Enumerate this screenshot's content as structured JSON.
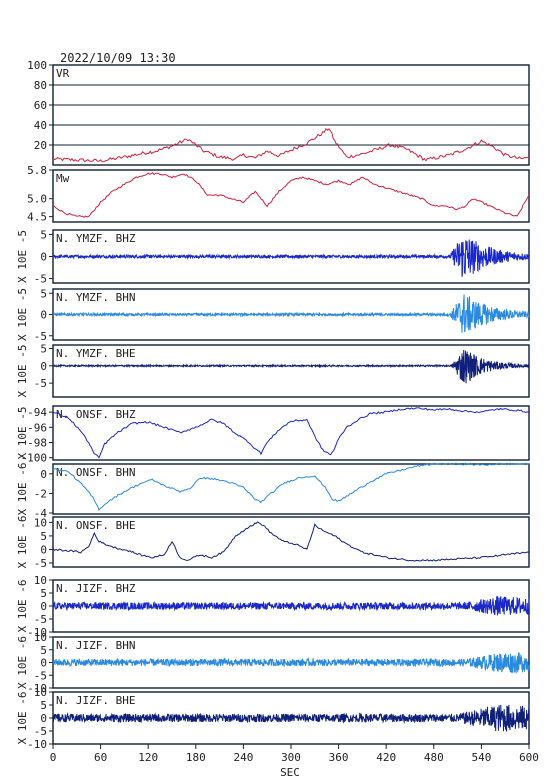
{
  "header": {
    "timestamp": "2022/10/09  13:30"
  },
  "colors": {
    "frame": "#0d2036",
    "vr": "#d0203e",
    "mw": "#d0203e",
    "bhz": "#1a28c8",
    "bhn": "#2a8ae0",
    "bhe": "#10207a"
  },
  "chart_data": {
    "type": "line",
    "xlabel": "SEC",
    "xlim": [
      0,
      600
    ],
    "xticks": [
      0,
      60,
      120,
      180,
      240,
      300,
      360,
      420,
      480,
      540,
      600
    ],
    "panels": [
      {
        "id": "vr",
        "name": "VR",
        "ylabel": "",
        "color": "vr",
        "style": "line",
        "grid": true,
        "ylim": [
          0,
          100
        ],
        "yticks": [
          20,
          40,
          60,
          80,
          100
        ],
        "yticklabels": [
          "20",
          "40",
          "60",
          "80",
          "100"
        ],
        "x": [
          0,
          30,
          60,
          90,
          115,
          130,
          150,
          170,
          190,
          210,
          230,
          240,
          255,
          270,
          285,
          300,
          320,
          340,
          348,
          355,
          370,
          390,
          410,
          425,
          445,
          470,
          500,
          520,
          540,
          555,
          570,
          590,
          600
        ],
        "y": [
          6,
          5,
          4,
          8,
          12,
          14,
          19,
          26,
          14,
          8,
          6,
          10,
          7,
          14,
          9,
          15,
          22,
          32,
          37,
          24,
          8,
          11,
          16,
          20,
          16,
          5,
          10,
          16,
          24,
          18,
          10,
          6,
          8
        ]
      },
      {
        "id": "mw",
        "name": "Mw",
        "ylabel": "",
        "color": "mw",
        "style": "line",
        "grid": false,
        "ylim": [
          4.35,
          5.8
        ],
        "yticks": [
          4.5,
          5.0,
          5.8
        ],
        "yticklabels": [
          "4.5",
          "5.0",
          "5.8"
        ],
        "x": [
          0,
          15,
          30,
          45,
          60,
          75,
          90,
          105,
          120,
          135,
          150,
          165,
          180,
          195,
          210,
          225,
          240,
          255,
          270,
          285,
          300,
          315,
          330,
          345,
          360,
          375,
          390,
          405,
          420,
          435,
          450,
          465,
          480,
          495,
          510,
          520,
          530,
          540,
          550,
          560,
          570,
          585,
          600
        ],
        "y": [
          4.8,
          4.6,
          4.5,
          4.5,
          4.9,
          5.2,
          5.4,
          5.6,
          5.7,
          5.7,
          5.6,
          5.7,
          5.5,
          5.1,
          5.1,
          5.0,
          4.9,
          5.2,
          4.8,
          5.2,
          5.5,
          5.6,
          5.5,
          5.4,
          5.5,
          5.4,
          5.6,
          5.4,
          5.3,
          5.2,
          5.1,
          5.0,
          4.8,
          4.8,
          4.7,
          4.8,
          5.0,
          4.9,
          4.8,
          4.7,
          4.6,
          4.5,
          5.1
        ]
      },
      {
        "id": "ymzf-bhz",
        "name": "N. YMZF. BHZ",
        "ylabel": "X 10E -5",
        "color": "bhz",
        "style": "wave",
        "ylim": [
          -6,
          6
        ],
        "yticks": [
          5,
          0,
          -5
        ],
        "yticklabels": [
          "5",
          "0",
          "-5"
        ],
        "noise": 0.35,
        "event_start": 500,
        "event_peak": 518,
        "event_amp": 5.5,
        "event_decay": 30
      },
      {
        "id": "ymzf-bhn",
        "name": "N. YMZF. BHN",
        "ylabel": "X 10E -5",
        "color": "bhn",
        "style": "wave",
        "ylim": [
          -6,
          6
        ],
        "yticks": [
          5,
          0,
          -5
        ],
        "yticklabels": [
          "5",
          "0",
          "-5"
        ],
        "noise": 0.3,
        "event_start": 500,
        "event_peak": 518,
        "event_amp": 5.0,
        "event_decay": 32
      },
      {
        "id": "ymzf-bhe",
        "name": "N. YMZF. BHE",
        "ylabel": "X 10E -5",
        "color": "bhe",
        "style": "wave",
        "ylim": [
          -9,
          6
        ],
        "yticks": [
          5,
          0,
          -5
        ],
        "yticklabels": [
          "5",
          "0",
          "-5"
        ],
        "noise": 0.2,
        "event_start": 502,
        "event_peak": 518,
        "event_amp": 5.5,
        "event_decay": 25
      },
      {
        "id": "onsf-bhz",
        "name": "N. ONSF. BHZ",
        "ylabel": "X 10E -5",
        "color": "bhz",
        "style": "line",
        "ylim": [
          -100.3,
          -93.2
        ],
        "yticks": [
          -94,
          -96,
          -98,
          -100
        ],
        "yticklabels": [
          "-94",
          "-96",
          "-98",
          "-100"
        ],
        "x": [
          0,
          20,
          35,
          45,
          52,
          58,
          65,
          80,
          100,
          120,
          140,
          160,
          180,
          200,
          215,
          230,
          245,
          255,
          262,
          270,
          285,
          300,
          320,
          330,
          340,
          350,
          355,
          360,
          370,
          385,
          400,
          420,
          440,
          460,
          480,
          500,
          520,
          540,
          560,
          580,
          600
        ],
        "y": [
          -94.0,
          -94.8,
          -96.5,
          -98.0,
          -99.5,
          -100.0,
          -98.2,
          -96.8,
          -95.5,
          -95.3,
          -96.0,
          -96.7,
          -96.0,
          -95.0,
          -95.5,
          -96.8,
          -97.8,
          -98.8,
          -99.4,
          -98.0,
          -96.3,
          -95.2,
          -95.0,
          -97.2,
          -99.0,
          -99.6,
          -98.8,
          -97.5,
          -96.0,
          -95.0,
          -94.2,
          -94.0,
          -93.6,
          -93.5,
          -93.7,
          -93.6,
          -93.9,
          -94.0,
          -93.6,
          -93.7,
          -94.0
        ]
      },
      {
        "id": "onsf-bhn",
        "name": "N. ONSF. BHN",
        "ylabel": "X 10E -6",
        "color": "bhn",
        "style": "line",
        "ylim": [
          -4.1,
          1.0
        ],
        "yticks": [
          0,
          -2,
          -4
        ],
        "yticklabels": [
          "0",
          "-2",
          "-4"
        ],
        "x": [
          0,
          20,
          40,
          50,
          58,
          70,
          90,
          110,
          125,
          140,
          160,
          175,
          185,
          200,
          220,
          240,
          255,
          262,
          272,
          290,
          310,
          330,
          345,
          352,
          360,
          380,
          400,
          420,
          440,
          460,
          480,
          500,
          520,
          540,
          560,
          580,
          600
        ],
        "y": [
          0.5,
          0.2,
          -1.4,
          -2.4,
          -3.6,
          -2.8,
          -1.8,
          -1.0,
          -0.6,
          -1.2,
          -1.8,
          -1.4,
          -0.4,
          -0.5,
          -0.8,
          -1.4,
          -2.6,
          -2.9,
          -2.2,
          -1.0,
          -0.4,
          -0.2,
          -1.6,
          -2.6,
          -2.8,
          -1.8,
          -0.8,
          0.0,
          0.4,
          0.8,
          1.0,
          1.0,
          1.0,
          0.9,
          1.0,
          1.0,
          1.0
        ]
      },
      {
        "id": "onsf-bhe",
        "name": "N. ONSF. BHE",
        "ylabel": "X 10E -6",
        "color": "bhe",
        "style": "line",
        "ylim": [
          -6.5,
          12
        ],
        "yticks": [
          10,
          5,
          0,
          -5
        ],
        "yticklabels": [
          "10",
          "5",
          "0",
          "-5"
        ],
        "x": [
          0,
          20,
          35,
          45,
          52,
          58,
          65,
          80,
          95,
          110,
          125,
          140,
          150,
          160,
          170,
          185,
          200,
          215,
          230,
          245,
          258,
          265,
          275,
          290,
          305,
          320,
          330,
          340,
          355,
          370,
          390,
          420,
          450,
          480,
          510,
          540,
          570,
          600
        ],
        "y": [
          0,
          -0.5,
          -1.0,
          1.0,
          6.0,
          3.0,
          2.0,
          0.5,
          -0.5,
          -2.0,
          -3.0,
          -2.0,
          3.0,
          -3.0,
          -4.0,
          -2.0,
          -3.0,
          -1.0,
          5.0,
          8.0,
          10.0,
          9.0,
          6.0,
          3.0,
          2.0,
          0.0,
          9.0,
          7.0,
          5.0,
          2.0,
          -1.0,
          -3.0,
          -4.0,
          -4.0,
          -3.5,
          -3.0,
          -2.0,
          -1.0
        ]
      },
      {
        "id": "jizf-bhz",
        "name": "N. JIZF. BHZ",
        "ylabel": "X 10E -6",
        "color": "bhz",
        "style": "wave",
        "ylim": [
          -10,
          10
        ],
        "yticks": [
          10,
          5,
          0,
          -5,
          -10
        ],
        "yticklabels": [
          "10",
          "5",
          "0",
          "-5",
          "-10"
        ],
        "noise": 1.4,
        "event_start": 520,
        "event_peak": 560,
        "event_amp": 2.5,
        "event_decay": 120
      },
      {
        "id": "jizf-bhn",
        "name": "N. JIZF. BHN",
        "ylabel": "X 10E -6",
        "color": "bhn",
        "style": "wave",
        "ylim": [
          -10,
          10
        ],
        "yticks": [
          10,
          5,
          0,
          -5,
          -10
        ],
        "yticklabels": [
          "10",
          "5",
          "0",
          "-5",
          "-10"
        ],
        "noise": 1.4,
        "event_start": 520,
        "event_peak": 570,
        "event_amp": 3.0,
        "event_decay": 120
      },
      {
        "id": "jizf-bhe",
        "name": "N. JIZF. BHE",
        "ylabel": "X 10E -6",
        "color": "bhe",
        "style": "wave",
        "ylim": [
          -10,
          10
        ],
        "yticks": [
          10,
          5,
          0,
          -5,
          -10
        ],
        "yticklabels": [
          "10",
          "5",
          "0",
          "-5",
          "-10"
        ],
        "noise": 1.6,
        "event_start": 510,
        "event_peak": 565,
        "event_amp": 4.0,
        "event_decay": 120
      }
    ]
  }
}
